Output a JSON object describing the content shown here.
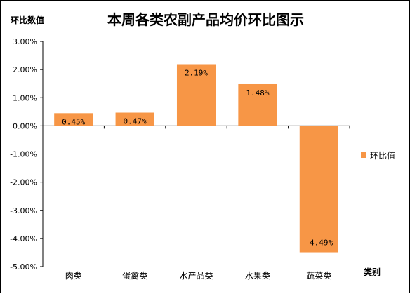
{
  "chart_data": {
    "type": "bar",
    "title": "本周各类农副产品均价环比图示",
    "ylabel": "环比数值",
    "xlabel": "类别",
    "categories": [
      "肉类",
      "蛋禽类",
      "水产品类",
      "水果类",
      "蔬菜类"
    ],
    "series": [
      {
        "name": "环比值",
        "values": [
          0.45,
          0.47,
          2.19,
          1.48,
          -4.49
        ],
        "labels": [
          "0.45%",
          "0.47%",
          "2.19%",
          "1.48%",
          "-4.49%"
        ],
        "color": "#F79646"
      }
    ],
    "ylim": [
      -5,
      3
    ],
    "yticks": [
      3,
      2,
      1,
      0,
      -1,
      -2,
      -3,
      -4,
      -5
    ],
    "ytick_labels": [
      "3.00%",
      "2.00%",
      "1.00%",
      "0.00%",
      "-1.00%",
      "-2.00%",
      "-3.00%",
      "-4.00%",
      "-5.00%"
    ],
    "grid": false,
    "legend": "right"
  }
}
